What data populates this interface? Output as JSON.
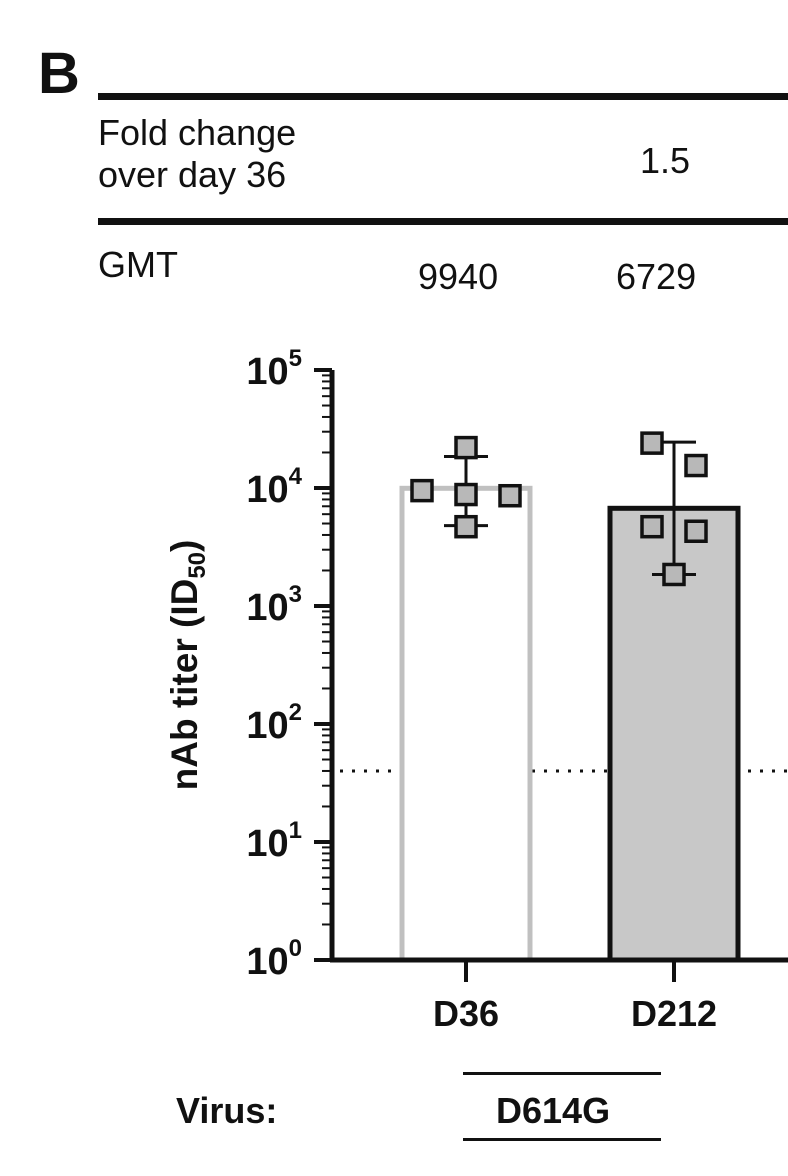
{
  "panel": "B",
  "table": {
    "fold_label_line1": "Fold change",
    "fold_label_line2": "over day 36",
    "fold_value": "1.5",
    "gmt_label": "GMT",
    "gmt_values": [
      "9940",
      "6729"
    ]
  },
  "virus": {
    "label": "Virus:",
    "name": "D614G"
  },
  "chart_data": {
    "type": "bar",
    "scale": "log10",
    "ylabel": "nAb titer (ID50)",
    "ylim": [
      1,
      100000
    ],
    "yticks": [
      {
        "exp": "0",
        "value": 1
      },
      {
        "exp": "1",
        "value": 10
      },
      {
        "exp": "2",
        "value": 100
      },
      {
        "exp": "3",
        "value": 1000
      },
      {
        "exp": "4",
        "value": 10000
      },
      {
        "exp": "5",
        "value": 100000
      }
    ],
    "categories": [
      "D36",
      "D212"
    ],
    "values": [
      9940,
      6729
    ],
    "bar_fill": [
      "#ffffff",
      "#c8c8c8"
    ],
    "bar_stroke": [
      "#c0c0c0",
      "#111111"
    ],
    "points": [
      [
        {
          "offset": 0,
          "value": 22000
        },
        {
          "offset": -1,
          "value": 9500
        },
        {
          "offset": 0,
          "value": 8800
        },
        {
          "offset": 1,
          "value": 8600
        },
        {
          "offset": 0,
          "value": 4700
        }
      ],
      [
        {
          "offset": -0.5,
          "value": 24000
        },
        {
          "offset": 0.5,
          "value": 15500
        },
        {
          "offset": -0.5,
          "value": 4700
        },
        {
          "offset": 0.5,
          "value": 4300
        },
        {
          "offset": 0,
          "value": 1850
        }
      ]
    ],
    "error_bars": [
      {
        "low": 4800,
        "high": 18500
      },
      {
        "low": 1850,
        "high": 24500
      }
    ],
    "lod": 40,
    "point_fill": "#b8b8b8"
  }
}
